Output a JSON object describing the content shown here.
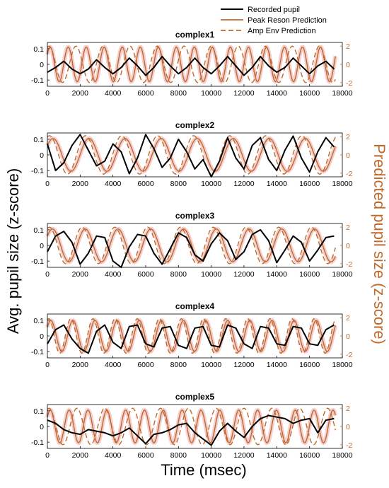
{
  "figure": {
    "xlabel": "Time (msec)",
    "ylabel_left": "Avg. pupil size (z-score)",
    "ylabel_right": "Predicted pupil size (z-score)",
    "colors": {
      "recorded": "#000000",
      "prediction": "#c0692b",
      "ribbon": "#f4cfd0"
    },
    "legend": {
      "entries": [
        {
          "label": "Recorded pupil",
          "style": "solid-black"
        },
        {
          "label": "Peak Reson Prediction",
          "style": "solid-orange"
        },
        {
          "label": "Amp Env Prediction",
          "style": "dashed-orange"
        }
      ],
      "placement": "top-right"
    }
  },
  "chart_data": [
    {
      "type": "line",
      "title": "complex1",
      "xlim": [
        0,
        18000
      ],
      "xticks": [
        0,
        2000,
        4000,
        6000,
        8000,
        10000,
        12000,
        14000,
        16000,
        18000
      ],
      "ylim_left": [
        -0.14,
        0.14
      ],
      "yticks_left": [
        -0.1,
        0,
        0.1
      ],
      "ytick_labels_left": [
        "-0.1",
        "0",
        "0.1"
      ],
      "ylim_right": [
        -2.4,
        2.4
      ],
      "yticks_right": [
        -2,
        0,
        2
      ],
      "recorded_pupil": {
        "x": [
          0,
          500,
          1000,
          1500,
          2000,
          2500,
          3000,
          3500,
          4000,
          4500,
          5000,
          5500,
          6000,
          6500,
          7000,
          7500,
          8000,
          8500,
          9000,
          9500,
          10000,
          10500,
          11000,
          11500,
          12000,
          12500,
          13000,
          13500,
          14000,
          14500,
          15000,
          15500,
          16000,
          16500,
          17000,
          17500
        ],
        "y": [
          -0.05,
          -0.02,
          0.02,
          -0.03,
          -0.06,
          -0.03,
          0.03,
          -0.02,
          -0.06,
          -0.02,
          0.04,
          -0.01,
          -0.07,
          -0.02,
          0.05,
          -0.01,
          -0.06,
          -0.02,
          0.04,
          -0.02,
          -0.06,
          -0.01,
          0.05,
          -0.01,
          -0.07,
          -0.02,
          0.05,
          -0.01,
          -0.05,
          -0.02,
          0.04,
          -0.01,
          -0.06,
          -0.01,
          0.02,
          -0.03
        ]
      },
      "peak_reson_prediction": {
        "period_ms": 1100,
        "amplitude": 1.9
      },
      "amp_env_prediction": {
        "period_ms": 1650,
        "amplitude": 2.0
      }
    },
    {
      "type": "line",
      "title": "complex2",
      "xlim": [
        0,
        18000
      ],
      "xticks": [
        0,
        2000,
        4000,
        6000,
        8000,
        10000,
        12000,
        14000,
        16000,
        18000
      ],
      "ylim_left": [
        -0.14,
        0.14
      ],
      "yticks_left": [
        -0.1,
        0,
        0.1
      ],
      "ytick_labels_left": [
        "-0.1",
        "0",
        "0.1"
      ],
      "ylim_right": [
        -2.4,
        2.4
      ],
      "yticks_right": [
        -2,
        0,
        2
      ],
      "recorded_pupil": {
        "x": [
          0,
          500,
          1000,
          1500,
          2000,
          2500,
          3000,
          3500,
          4000,
          4500,
          5000,
          5500,
          6000,
          6500,
          7000,
          7500,
          8000,
          8500,
          9000,
          9500,
          10000,
          10500,
          11000,
          11500,
          12000,
          12500,
          13000,
          13500,
          14000,
          14500,
          15000,
          15500,
          16000,
          16500,
          17000,
          17500
        ],
        "y": [
          0.07,
          -0.1,
          -0.05,
          0.06,
          0.13,
          0.03,
          -0.07,
          -0.04,
          0.07,
          0.02,
          -0.12,
          -0.02,
          0.13,
          0.04,
          -0.08,
          -0.02,
          0.1,
          0.02,
          -0.09,
          -0.03,
          -0.14,
          -0.04,
          0.11,
          -0.02,
          -0.09,
          0.06,
          0.11,
          -0.03,
          -0.1,
          0.03,
          0.12,
          -0.02,
          -0.11,
          0.02,
          0.11,
          0.05
        ]
      },
      "peak_reson_prediction": {
        "period_ms": 2200,
        "amplitude": 1.8
      },
      "amp_env_prediction": {
        "period_ms": 2200,
        "amplitude": 2.1
      }
    },
    {
      "type": "line",
      "title": "complex3",
      "xlim": [
        0,
        18000
      ],
      "xticks": [
        0,
        2000,
        4000,
        6000,
        8000,
        10000,
        12000,
        14000,
        16000,
        18000
      ],
      "ylim_left": [
        -0.14,
        0.14
      ],
      "yticks_left": [
        -0.1,
        0,
        0.1
      ],
      "ytick_labels_left": [
        "-0.1",
        "0",
        "0.1"
      ],
      "ylim_right": [
        -2.4,
        2.4
      ],
      "yticks_right": [
        -2,
        0,
        2
      ],
      "recorded_pupil": {
        "x": [
          0,
          500,
          1000,
          1500,
          2000,
          2500,
          3000,
          3500,
          4000,
          4500,
          5000,
          5500,
          6000,
          6500,
          7000,
          7500,
          8000,
          8500,
          9000,
          9500,
          10000,
          10500,
          11000,
          11500,
          12000,
          12500,
          13000,
          13500,
          14000,
          14500,
          15000,
          15500,
          16000,
          16500,
          17000,
          17500
        ],
        "y": [
          -0.04,
          0.06,
          0.09,
          0.02,
          -0.12,
          -0.05,
          0.06,
          0.05,
          -0.1,
          -0.14,
          -0.01,
          0.07,
          0.06,
          -0.05,
          -0.12,
          -0.02,
          0.08,
          0.05,
          -0.06,
          -0.1,
          0.01,
          0.08,
          0.03,
          -0.09,
          -0.04,
          0.07,
          0.1,
          0.03,
          -0.11,
          -0.03,
          0.06,
          0.02,
          -0.1,
          -0.03,
          0.05,
          0.06
        ]
      },
      "peak_reson_prediction": {
        "period_ms": 2000,
        "amplitude": 1.8
      },
      "amp_env_prediction": {
        "period_ms": 2000,
        "amplitude": 2.0
      }
    },
    {
      "type": "line",
      "title": "complex4",
      "xlim": [
        0,
        18000
      ],
      "xticks": [
        0,
        2000,
        4000,
        6000,
        8000,
        10000,
        12000,
        14000,
        16000,
        18000
      ],
      "ylim_left": [
        -0.14,
        0.14
      ],
      "yticks_left": [
        -0.1,
        0,
        0.1
      ],
      "ytick_labels_left": [
        "-0.1",
        "0",
        "0.1"
      ],
      "ylim_right": [
        -2.4,
        2.4
      ],
      "yticks_right": [
        -2,
        0,
        2
      ],
      "recorded_pupil": {
        "x": [
          0,
          500,
          1000,
          1500,
          2000,
          2500,
          3000,
          3500,
          4000,
          4500,
          5000,
          5500,
          6000,
          6500,
          7000,
          7500,
          8000,
          8500,
          9000,
          9500,
          10000,
          10500,
          11000,
          11500,
          12000,
          12500,
          13000,
          13500,
          14000,
          14500,
          15000,
          15500,
          16000,
          16500,
          17000,
          17500
        ],
        "y": [
          -0.05,
          0.04,
          0.07,
          -0.02,
          -0.08,
          -0.11,
          0.03,
          0.07,
          -0.04,
          -0.08,
          0.06,
          0.07,
          -0.05,
          -0.07,
          0.05,
          0.06,
          -0.06,
          -0.08,
          0.05,
          0.06,
          -0.06,
          -0.07,
          0.07,
          0.05,
          -0.05,
          -0.08,
          0.06,
          0.05,
          -0.05,
          -0.06,
          0.06,
          0.05,
          -0.05,
          -0.06,
          0.04,
          0.07
        ]
      },
      "peak_reson_prediction": {
        "period_ms": 1350,
        "amplitude": 1.7
      },
      "amp_env_prediction": {
        "period_ms": 1350,
        "amplitude": 1.9
      }
    },
    {
      "type": "line",
      "title": "complex5",
      "xlim": [
        0,
        18000
      ],
      "xticks": [
        0,
        2000,
        4000,
        6000,
        8000,
        10000,
        12000,
        14000,
        16000,
        18000
      ],
      "ylim_left": [
        -0.14,
        0.14
      ],
      "yticks_left": [
        -0.1,
        0,
        0.1
      ],
      "ytick_labels_left": [
        "-0.1",
        "0",
        "0.1"
      ],
      "ylim_right": [
        -2.4,
        2.4
      ],
      "yticks_right": [
        -2,
        0,
        2
      ],
      "recorded_pupil": {
        "x": [
          0,
          500,
          1000,
          1500,
          2000,
          2500,
          3000,
          3500,
          4000,
          4500,
          5000,
          5500,
          6000,
          6500,
          7000,
          7500,
          8000,
          8500,
          9000,
          9500,
          10000,
          10500,
          11000,
          11500,
          12000,
          12500,
          13000,
          13500,
          14000,
          14500,
          15000,
          15500,
          16000,
          16500,
          17000,
          17500
        ],
        "y": [
          0.04,
          0.02,
          -0.02,
          -0.04,
          -0.05,
          -0.02,
          -0.03,
          -0.04,
          -0.06,
          -0.04,
          -0.01,
          -0.06,
          -0.11,
          -0.05,
          -0.04,
          -0.02,
          0.01,
          0.02,
          -0.04,
          -0.08,
          -0.12,
          -0.03,
          0.02,
          -0.03,
          -0.07,
          0.0,
          0.05,
          0.07,
          0.06,
          0.05,
          0.02,
          0.04,
          0.05,
          -0.04,
          0.04,
          0.05
        ]
      },
      "peak_reson_prediction": {
        "period_ms": 1150,
        "amplitude": 1.8
      },
      "amp_env_prediction": {
        "period_ms": 1700,
        "amplitude": 2.0
      }
    }
  ]
}
